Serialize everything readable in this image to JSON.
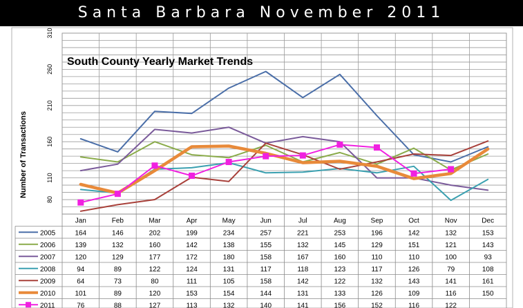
{
  "banner": {
    "title": "Santa Barbara November 2011"
  },
  "chart_data": {
    "type": "line",
    "title": "South County Yearly Market Trends",
    "ylabel": "Number of Transactions",
    "xlabel": "",
    "ylim": [
      60,
      310
    ],
    "yticks": [
      80,
      110,
      160,
      210,
      260,
      310
    ],
    "grid": true,
    "legend": "table-below",
    "categories": [
      "Jan",
      "Feb",
      "Mar",
      "Apr",
      "May",
      "Jun",
      "Jul",
      "Aug",
      "Sep",
      "Oct",
      "Nov",
      "Dec"
    ],
    "series": [
      {
        "name": "2005",
        "color": "#4a6ea8",
        "width": 2,
        "marker": false,
        "values": [
          164,
          146,
          202,
          199,
          234,
          257,
          221,
          253,
          196,
          142,
          132,
          153
        ]
      },
      {
        "name": "2006",
        "color": "#8aab4a",
        "width": 2,
        "marker": false,
        "values": [
          139,
          132,
          160,
          142,
          138,
          155,
          132,
          145,
          129,
          151,
          121,
          143
        ]
      },
      {
        "name": "2007",
        "color": "#7a5a9a",
        "width": 2,
        "marker": false,
        "values": [
          120,
          129,
          177,
          172,
          180,
          158,
          167,
          160,
          110,
          110,
          100,
          93
        ]
      },
      {
        "name": "2008",
        "color": "#3aa0b0",
        "width": 2,
        "marker": false,
        "values": [
          94,
          89,
          122,
          124,
          131,
          117,
          118,
          123,
          117,
          126,
          79,
          108
        ]
      },
      {
        "name": "2009",
        "color": "#a8403a",
        "width": 2,
        "marker": false,
        "values": [
          64,
          73,
          80,
          111,
          105,
          158,
          142,
          122,
          132,
          143,
          141,
          161
        ]
      },
      {
        "name": "2010",
        "color": "#e88a3a",
        "width": 4.5,
        "marker": false,
        "values": [
          101,
          89,
          120,
          153,
          154,
          144,
          131,
          133,
          126,
          109,
          116,
          150
        ]
      },
      {
        "name": "2011",
        "color": "#f020e0",
        "width": 2,
        "marker": true,
        "values": [
          76,
          88,
          127,
          113,
          132,
          140,
          141,
          156,
          152,
          116,
          122,
          null
        ]
      }
    ]
  }
}
